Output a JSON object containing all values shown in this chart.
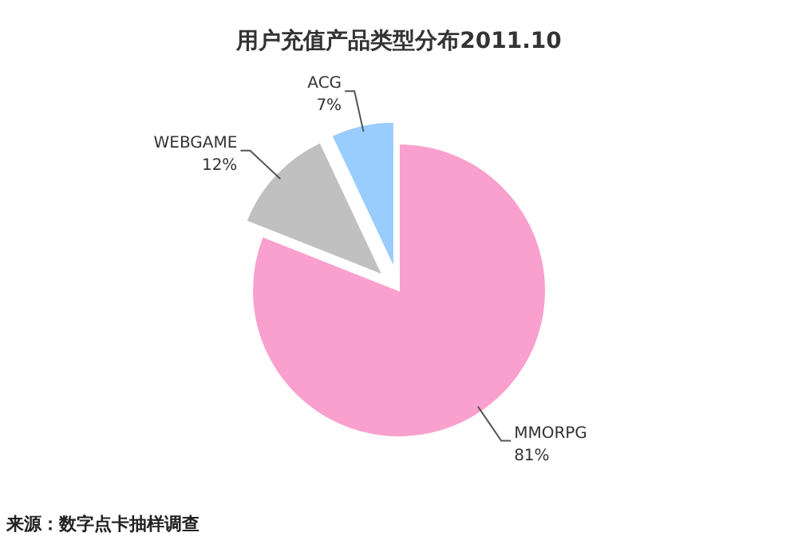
{
  "chart_data": {
    "type": "pie",
    "title": "用户充值产品类型分布2011.10",
    "categories": [
      "MMORPG",
      "WEBGAME",
      "ACG"
    ],
    "values": [
      81,
      12,
      7
    ],
    "value_labels": [
      "81%",
      "12%",
      "7%"
    ],
    "colors": [
      "#f9a0ce",
      "#c0c0c0",
      "#99ccff"
    ],
    "annotations": [
      "来源：数字点卡抽样调查"
    ]
  }
}
